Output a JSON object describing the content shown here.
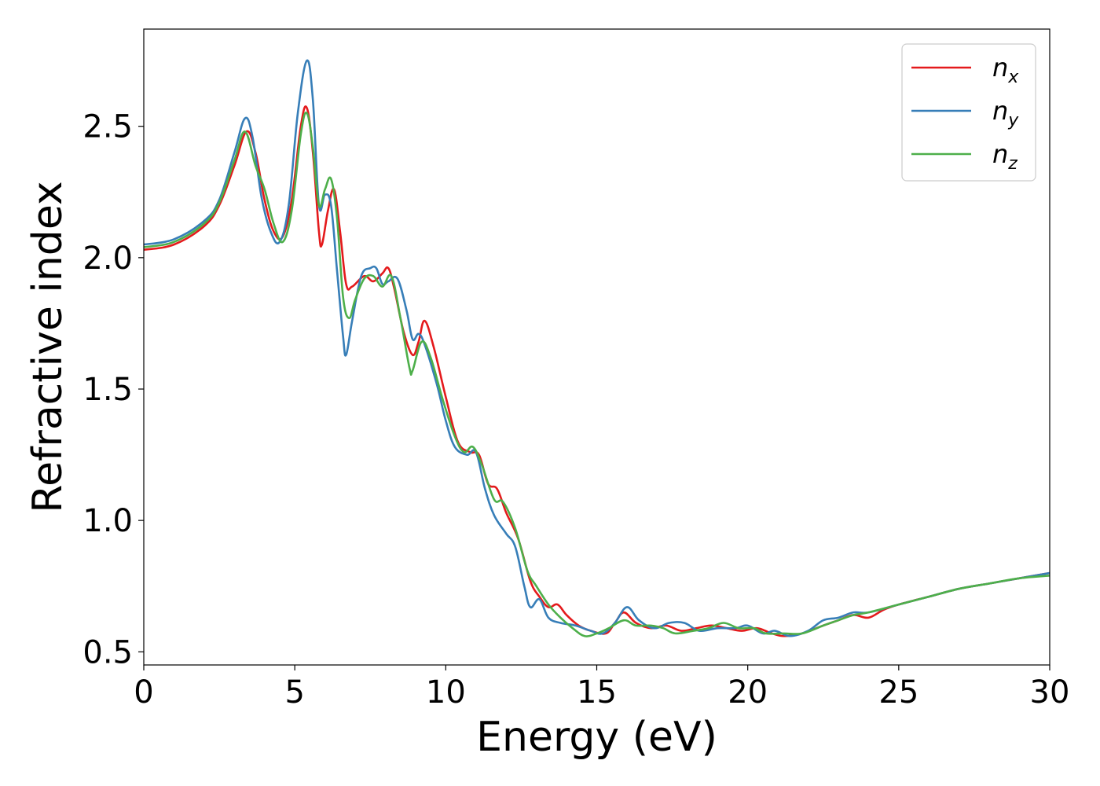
{
  "chart_data": {
    "type": "line",
    "title": "",
    "xlabel": "Energy (eV)",
    "ylabel": "Refractive index",
    "xlim": [
      0,
      30
    ],
    "ylim": [
      0.45,
      2.87
    ],
    "xticks": [
      0,
      5,
      10,
      15,
      20,
      25,
      30
    ],
    "xtick_labels": [
      "0",
      "5",
      "10",
      "15",
      "20",
      "25",
      "30"
    ],
    "yticks": [
      0.5,
      1.0,
      1.5,
      2.0,
      2.5
    ],
    "ytick_labels": [
      "0.5",
      "1.0",
      "1.5",
      "2.0",
      "2.5"
    ],
    "grid": false,
    "legend_position": "top-right",
    "series": [
      {
        "name": "n_x",
        "label_base": "n",
        "label_sub": "x",
        "color": "#e41a1c",
        "points": [
          [
            0,
            2.03
          ],
          [
            1,
            2.05
          ],
          [
            2,
            2.12
          ],
          [
            2.5,
            2.2
          ],
          [
            3,
            2.35
          ],
          [
            3.4,
            2.48
          ],
          [
            3.7,
            2.4
          ],
          [
            4,
            2.22
          ],
          [
            4.3,
            2.1
          ],
          [
            4.6,
            2.08
          ],
          [
            4.9,
            2.22
          ],
          [
            5.2,
            2.5
          ],
          [
            5.4,
            2.57
          ],
          [
            5.6,
            2.4
          ],
          [
            5.8,
            2.1
          ],
          [
            5.9,
            2.05
          ],
          [
            6.1,
            2.18
          ],
          [
            6.3,
            2.26
          ],
          [
            6.5,
            2.1
          ],
          [
            6.7,
            1.9
          ],
          [
            6.9,
            1.89
          ],
          [
            7.3,
            1.93
          ],
          [
            7.6,
            1.91
          ],
          [
            7.9,
            1.94
          ],
          [
            8.1,
            1.96
          ],
          [
            8.3,
            1.88
          ],
          [
            8.6,
            1.72
          ],
          [
            8.9,
            1.63
          ],
          [
            9.1,
            1.68
          ],
          [
            9.3,
            1.76
          ],
          [
            9.6,
            1.66
          ],
          [
            10,
            1.47
          ],
          [
            10.4,
            1.3
          ],
          [
            10.8,
            1.26
          ],
          [
            11.1,
            1.25
          ],
          [
            11.4,
            1.14
          ],
          [
            11.7,
            1.12
          ],
          [
            12,
            1.03
          ],
          [
            12.4,
            0.93
          ],
          [
            12.8,
            0.77
          ],
          [
            13.1,
            0.71
          ],
          [
            13.4,
            0.67
          ],
          [
            13.7,
            0.68
          ],
          [
            14,
            0.64
          ],
          [
            14.4,
            0.6
          ],
          [
            14.8,
            0.58
          ],
          [
            15.3,
            0.57
          ],
          [
            15.6,
            0.61
          ],
          [
            15.9,
            0.65
          ],
          [
            16.3,
            0.61
          ],
          [
            16.8,
            0.59
          ],
          [
            17.3,
            0.6
          ],
          [
            17.8,
            0.58
          ],
          [
            18.3,
            0.59
          ],
          [
            18.8,
            0.6
          ],
          [
            19.3,
            0.59
          ],
          [
            19.8,
            0.58
          ],
          [
            20.3,
            0.59
          ],
          [
            20.8,
            0.57
          ],
          [
            21.2,
            0.56
          ],
          [
            21.8,
            0.57
          ],
          [
            22.5,
            0.6
          ],
          [
            23,
            0.62
          ],
          [
            23.5,
            0.64
          ],
          [
            24,
            0.63
          ],
          [
            24.5,
            0.66
          ],
          [
            25,
            0.68
          ],
          [
            26,
            0.71
          ],
          [
            27,
            0.74
          ],
          [
            28,
            0.76
          ],
          [
            29,
            0.78
          ],
          [
            30,
            0.8
          ]
        ]
      },
      {
        "name": "n_y",
        "label_base": "n",
        "label_sub": "y",
        "color": "#377eb8",
        "points": [
          [
            0,
            2.05
          ],
          [
            1,
            2.07
          ],
          [
            2,
            2.14
          ],
          [
            2.5,
            2.22
          ],
          [
            3,
            2.4
          ],
          [
            3.35,
            2.53
          ],
          [
            3.6,
            2.46
          ],
          [
            3.9,
            2.23
          ],
          [
            4.2,
            2.1
          ],
          [
            4.5,
            2.06
          ],
          [
            4.8,
            2.2
          ],
          [
            5.1,
            2.55
          ],
          [
            5.4,
            2.75
          ],
          [
            5.6,
            2.6
          ],
          [
            5.8,
            2.2
          ],
          [
            6.0,
            2.24
          ],
          [
            6.2,
            2.2
          ],
          [
            6.4,
            1.95
          ],
          [
            6.6,
            1.7
          ],
          [
            6.7,
            1.63
          ],
          [
            6.9,
            1.76
          ],
          [
            7.2,
            1.93
          ],
          [
            7.5,
            1.96
          ],
          [
            7.7,
            1.96
          ],
          [
            7.9,
            1.9
          ],
          [
            8.1,
            1.91
          ],
          [
            8.4,
            1.92
          ],
          [
            8.7,
            1.8
          ],
          [
            8.9,
            1.69
          ],
          [
            9.1,
            1.71
          ],
          [
            9.3,
            1.67
          ],
          [
            9.7,
            1.52
          ],
          [
            10,
            1.38
          ],
          [
            10.3,
            1.28
          ],
          [
            10.7,
            1.25
          ],
          [
            11,
            1.26
          ],
          [
            11.3,
            1.12
          ],
          [
            11.6,
            1.02
          ],
          [
            12,
            0.95
          ],
          [
            12.3,
            0.9
          ],
          [
            12.6,
            0.75
          ],
          [
            12.8,
            0.67
          ],
          [
            13.1,
            0.7
          ],
          [
            13.4,
            0.63
          ],
          [
            13.8,
            0.61
          ],
          [
            14.3,
            0.6
          ],
          [
            14.8,
            0.58
          ],
          [
            15.2,
            0.57
          ],
          [
            15.6,
            0.61
          ],
          [
            16,
            0.67
          ],
          [
            16.4,
            0.62
          ],
          [
            16.9,
            0.59
          ],
          [
            17.4,
            0.61
          ],
          [
            17.9,
            0.61
          ],
          [
            18.4,
            0.58
          ],
          [
            19,
            0.59
          ],
          [
            19.6,
            0.59
          ],
          [
            20,
            0.6
          ],
          [
            20.5,
            0.57
          ],
          [
            20.9,
            0.58
          ],
          [
            21.4,
            0.56
          ],
          [
            22,
            0.58
          ],
          [
            22.5,
            0.62
          ],
          [
            23,
            0.63
          ],
          [
            23.5,
            0.65
          ],
          [
            24,
            0.65
          ],
          [
            25,
            0.68
          ],
          [
            26,
            0.71
          ],
          [
            27,
            0.74
          ],
          [
            28,
            0.76
          ],
          [
            29,
            0.78
          ],
          [
            30,
            0.8
          ]
        ]
      },
      {
        "name": "n_z",
        "label_base": "n",
        "label_sub": "z",
        "color": "#4daf4a",
        "points": [
          [
            0,
            2.04
          ],
          [
            1,
            2.06
          ],
          [
            2,
            2.13
          ],
          [
            2.5,
            2.21
          ],
          [
            3,
            2.37
          ],
          [
            3.35,
            2.48
          ],
          [
            3.7,
            2.35
          ],
          [
            4.0,
            2.26
          ],
          [
            4.3,
            2.13
          ],
          [
            4.6,
            2.06
          ],
          [
            4.9,
            2.18
          ],
          [
            5.2,
            2.47
          ],
          [
            5.4,
            2.55
          ],
          [
            5.6,
            2.42
          ],
          [
            5.8,
            2.2
          ],
          [
            6.0,
            2.26
          ],
          [
            6.2,
            2.3
          ],
          [
            6.4,
            2.15
          ],
          [
            6.6,
            1.85
          ],
          [
            6.8,
            1.77
          ],
          [
            7.0,
            1.84
          ],
          [
            7.3,
            1.92
          ],
          [
            7.6,
            1.93
          ],
          [
            7.9,
            1.89
          ],
          [
            8.2,
            1.93
          ],
          [
            8.5,
            1.77
          ],
          [
            8.8,
            1.58
          ],
          [
            8.9,
            1.57
          ],
          [
            9.2,
            1.68
          ],
          [
            9.5,
            1.62
          ],
          [
            9.9,
            1.46
          ],
          [
            10.3,
            1.32
          ],
          [
            10.6,
            1.26
          ],
          [
            10.9,
            1.28
          ],
          [
            11.2,
            1.21
          ],
          [
            11.6,
            1.08
          ],
          [
            11.9,
            1.07
          ],
          [
            12.3,
            0.97
          ],
          [
            12.7,
            0.81
          ],
          [
            13,
            0.75
          ],
          [
            13.4,
            0.68
          ],
          [
            13.8,
            0.63
          ],
          [
            14.2,
            0.59
          ],
          [
            14.6,
            0.56
          ],
          [
            15,
            0.57
          ],
          [
            15.4,
            0.59
          ],
          [
            15.9,
            0.62
          ],
          [
            16.3,
            0.6
          ],
          [
            16.8,
            0.6
          ],
          [
            17.2,
            0.59
          ],
          [
            17.6,
            0.57
          ],
          [
            18.2,
            0.58
          ],
          [
            18.7,
            0.59
          ],
          [
            19.2,
            0.61
          ],
          [
            19.7,
            0.59
          ],
          [
            20.2,
            0.59
          ],
          [
            20.6,
            0.57
          ],
          [
            21.2,
            0.57
          ],
          [
            21.8,
            0.57
          ],
          [
            22.5,
            0.6
          ],
          [
            23,
            0.62
          ],
          [
            23.5,
            0.64
          ],
          [
            24,
            0.65
          ],
          [
            25,
            0.68
          ],
          [
            26,
            0.71
          ],
          [
            27,
            0.74
          ],
          [
            28,
            0.76
          ],
          [
            29,
            0.78
          ],
          [
            30,
            0.79
          ]
        ]
      }
    ]
  }
}
